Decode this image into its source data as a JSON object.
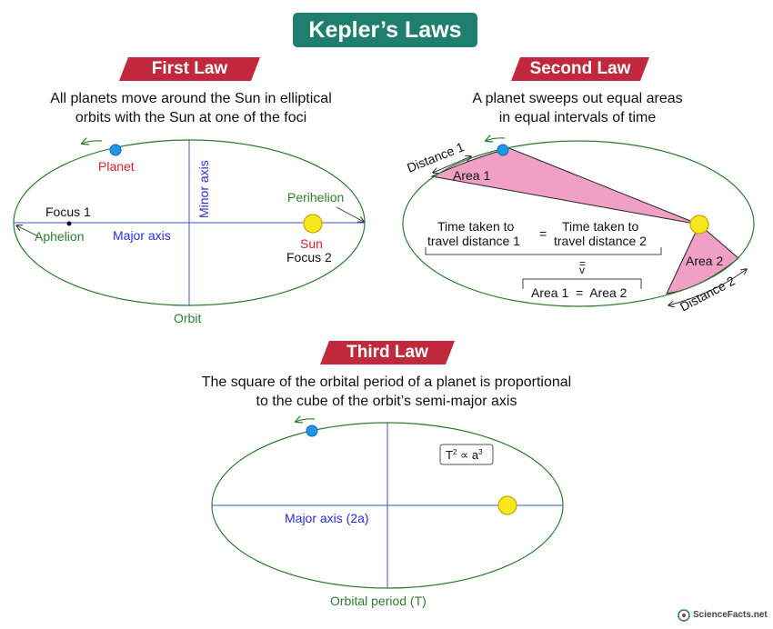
{
  "title": "Kepler’s Laws",
  "colors": {
    "title_bg": "#1f7f6f",
    "law_bg": "#c2283b",
    "orbit": "#2e7d32",
    "axis": "#3d56c7",
    "planet": "#2196e0",
    "sun": "#f8e71c",
    "area": "#f0a0c4"
  },
  "first_law": {
    "label": "First Law",
    "description_line1": "All planets move around the Sun in elliptical",
    "description_line2": "orbits with the Sun at one of the foci",
    "labels": {
      "planet": "Planet",
      "minor_axis": "Minor axis",
      "perihelion": "Perihelion",
      "focus1": "Focus 1",
      "aphelion": "Aphelion",
      "major_axis": "Major axis",
      "sun": "Sun",
      "focus2": "Focus 2",
      "orbit": "Orbit"
    }
  },
  "second_law": {
    "label": "Second Law",
    "description_line1": "A planet sweeps out equal areas",
    "description_line2": "in equal intervals of time",
    "labels": {
      "distance1": "Distance 1",
      "area1": "Area 1",
      "time_left_line1": "Time taken to",
      "time_left_line2": "travel distance 1",
      "equals": "=",
      "time_right_line1": "Time taken to",
      "time_right_line2": "travel distance 2",
      "implies_top": "=",
      "implies_bottom": "v",
      "area2": "Area 2",
      "area_equation": "Area 1  =  Area 2",
      "distance2": "Distance 2"
    }
  },
  "third_law": {
    "label": "Third Law",
    "description_line1": "The square of the orbital period of a planet is proportional",
    "description_line2": "to the cube of the orbit’s semi-major axis",
    "formula_base_t": "T",
    "formula_exp_t": "2",
    "formula_prop": " ∝ a",
    "formula_exp_a": "3",
    "labels": {
      "major_axis": "Major axis (2a)",
      "orbital_period": "Orbital period (T)"
    }
  },
  "brand": "ScienceFacts.net"
}
